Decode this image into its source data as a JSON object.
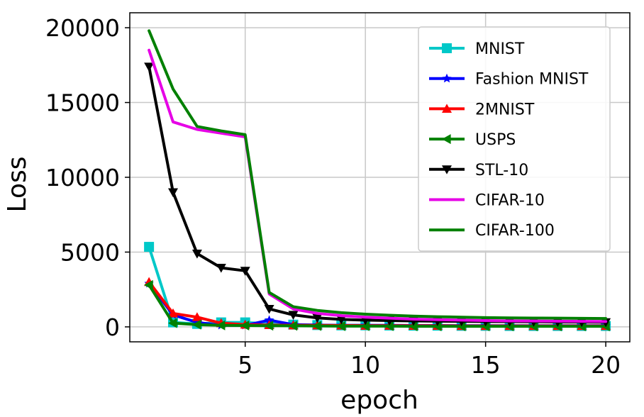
{
  "chart_data": {
    "type": "line",
    "title": "",
    "xlabel": "epoch",
    "ylabel": "Loss",
    "xlim": [
      0.2,
      21.0
    ],
    "ylim": [
      -1000,
      21000
    ],
    "xticks": [
      5,
      10,
      15,
      20
    ],
    "yticks": [
      0,
      5000,
      10000,
      15000,
      20000
    ],
    "grid": true,
    "legend_position": "upper-right",
    "x": [
      1,
      2,
      3,
      4,
      5,
      6,
      7,
      8,
      9,
      10,
      11,
      12,
      13,
      14,
      15,
      16,
      17,
      18,
      19,
      20
    ],
    "series": [
      {
        "name": "MNIST",
        "color": "#00c8c8",
        "marker": "square",
        "values": [
          5350,
          300,
          200,
          300,
          300,
          200,
          150,
          120,
          100,
          100,
          90,
          80,
          80,
          70,
          70,
          60,
          60,
          60,
          60,
          60
        ]
      },
      {
        "name": "Fashion MNIST",
        "color": "#0000ff",
        "marker": "star",
        "values": [
          2900,
          800,
          300,
          100,
          100,
          450,
          150,
          120,
          100,
          100,
          100,
          90,
          90,
          80,
          80,
          80,
          80,
          80,
          80,
          80
        ]
      },
      {
        "name": "2MNIST",
        "color": "#ff0000",
        "marker": "triangle-up",
        "values": [
          3000,
          900,
          650,
          250,
          150,
          120,
          100,
          100,
          90,
          80,
          80,
          70,
          70,
          60,
          60,
          60,
          60,
          60,
          60,
          60
        ]
      },
      {
        "name": "USPS",
        "color": "#008000",
        "marker": "triangle-left",
        "values": [
          2800,
          250,
          150,
          100,
          90,
          80,
          70,
          60,
          50,
          50,
          50,
          40,
          40,
          40,
          40,
          40,
          40,
          40,
          40,
          40
        ]
      },
      {
        "name": "STL-10",
        "color": "#000000",
        "marker": "triangle-down",
        "values": [
          17400,
          9000,
          4900,
          3950,
          3750,
          1200,
          800,
          600,
          500,
          450,
          420,
          400,
          380,
          370,
          360,
          350,
          340,
          330,
          320,
          310
        ]
      },
      {
        "name": "CIFAR-10",
        "color": "#e600e6",
        "marker": "none",
        "values": [
          18500,
          13700,
          13200,
          12950,
          12700,
          2200,
          1200,
          900,
          750,
          650,
          580,
          520,
          480,
          450,
          420,
          400,
          390,
          380,
          370,
          360
        ]
      },
      {
        "name": "CIFAR-100",
        "color": "#008000",
        "marker": "none",
        "values": [
          19800,
          15900,
          13400,
          13100,
          12850,
          2300,
          1350,
          1100,
          950,
          850,
          780,
          720,
          680,
          650,
          620,
          600,
          590,
          580,
          570,
          560
        ]
      }
    ]
  }
}
